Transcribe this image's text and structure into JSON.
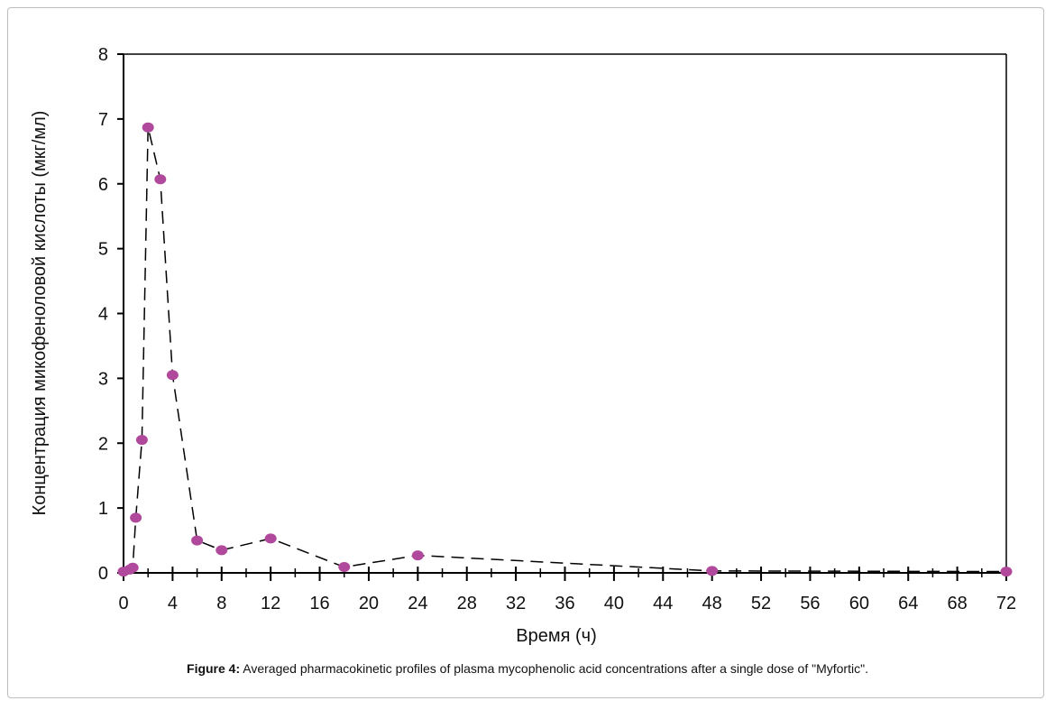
{
  "chart_data": {
    "type": "scatter",
    "title": "",
    "xlabel": "Время (ч)",
    "ylabel": "Концентрация микофеноловой кислоты (мкг/мл)",
    "xlim": [
      0,
      72
    ],
    "ylim": [
      0,
      8
    ],
    "xticks": [
      0,
      4,
      8,
      12,
      16,
      20,
      24,
      28,
      32,
      36,
      40,
      44,
      48,
      52,
      56,
      60,
      64,
      68,
      72
    ],
    "yticks": [
      0,
      1,
      2,
      3,
      4,
      5,
      6,
      7,
      8
    ],
    "grid": false,
    "legend": "none",
    "marker_color": "#b0489c",
    "line_style": "dashed",
    "series": [
      {
        "x": [
          0,
          0.5,
          0.75,
          1,
          1.5,
          2,
          3,
          4,
          6,
          8,
          12,
          18,
          24,
          48,
          72
        ],
        "y": [
          0.02,
          0.05,
          0.08,
          0.85,
          2.05,
          6.87,
          6.07,
          3.05,
          0.5,
          0.35,
          0.53,
          0.09,
          0.27,
          0.03,
          0.02
        ]
      }
    ]
  },
  "caption": {
    "label": "Figure 4:",
    "text": " Averaged pharmacokinetic profiles of plasma mycophenolic acid concentrations after a single dose of \"Myfortic\"."
  }
}
